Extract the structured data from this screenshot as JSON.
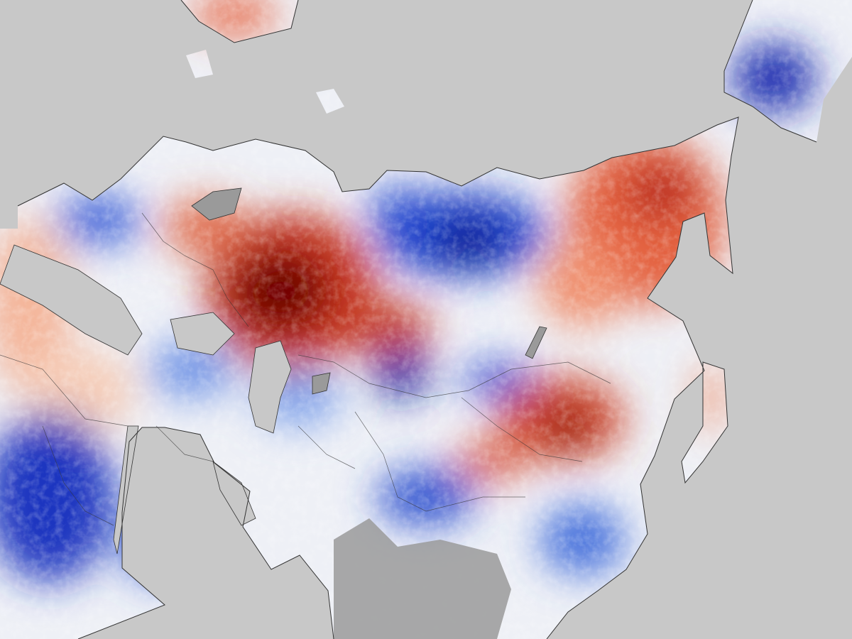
{
  "map": {
    "ocean_color": "#c8c8c8",
    "no_data_color": "#9a9a9a",
    "border_color": "#333333",
    "scale_colors": {
      "strong_cold": "#08147a",
      "cold": "#1f4fd6",
      "mild_cold": "#a9c4f5",
      "neutral": "#f5f1ee",
      "mild_warm": "#f4b49a",
      "warm": "#d9472c",
      "strong_warm": "#6e0000"
    }
  }
}
